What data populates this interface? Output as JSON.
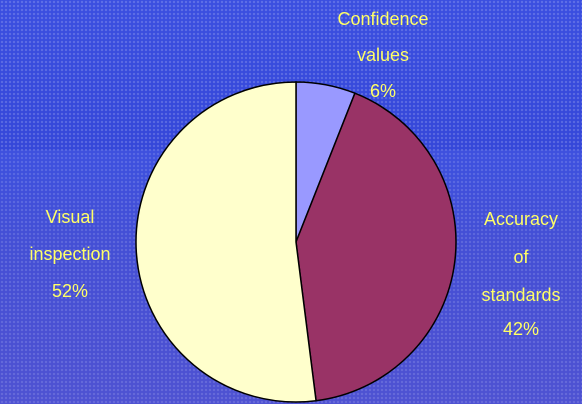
{
  "chart_data": {
    "type": "pie",
    "categories": [
      "Confidence values",
      "Accuracy of standards",
      "Visual inspection"
    ],
    "values": [
      6,
      42,
      52
    ],
    "value_labels": [
      "6%",
      "42%",
      "52%"
    ],
    "colors": [
      "#9999ff",
      "#993366",
      "#ffffcc"
    ]
  }
}
